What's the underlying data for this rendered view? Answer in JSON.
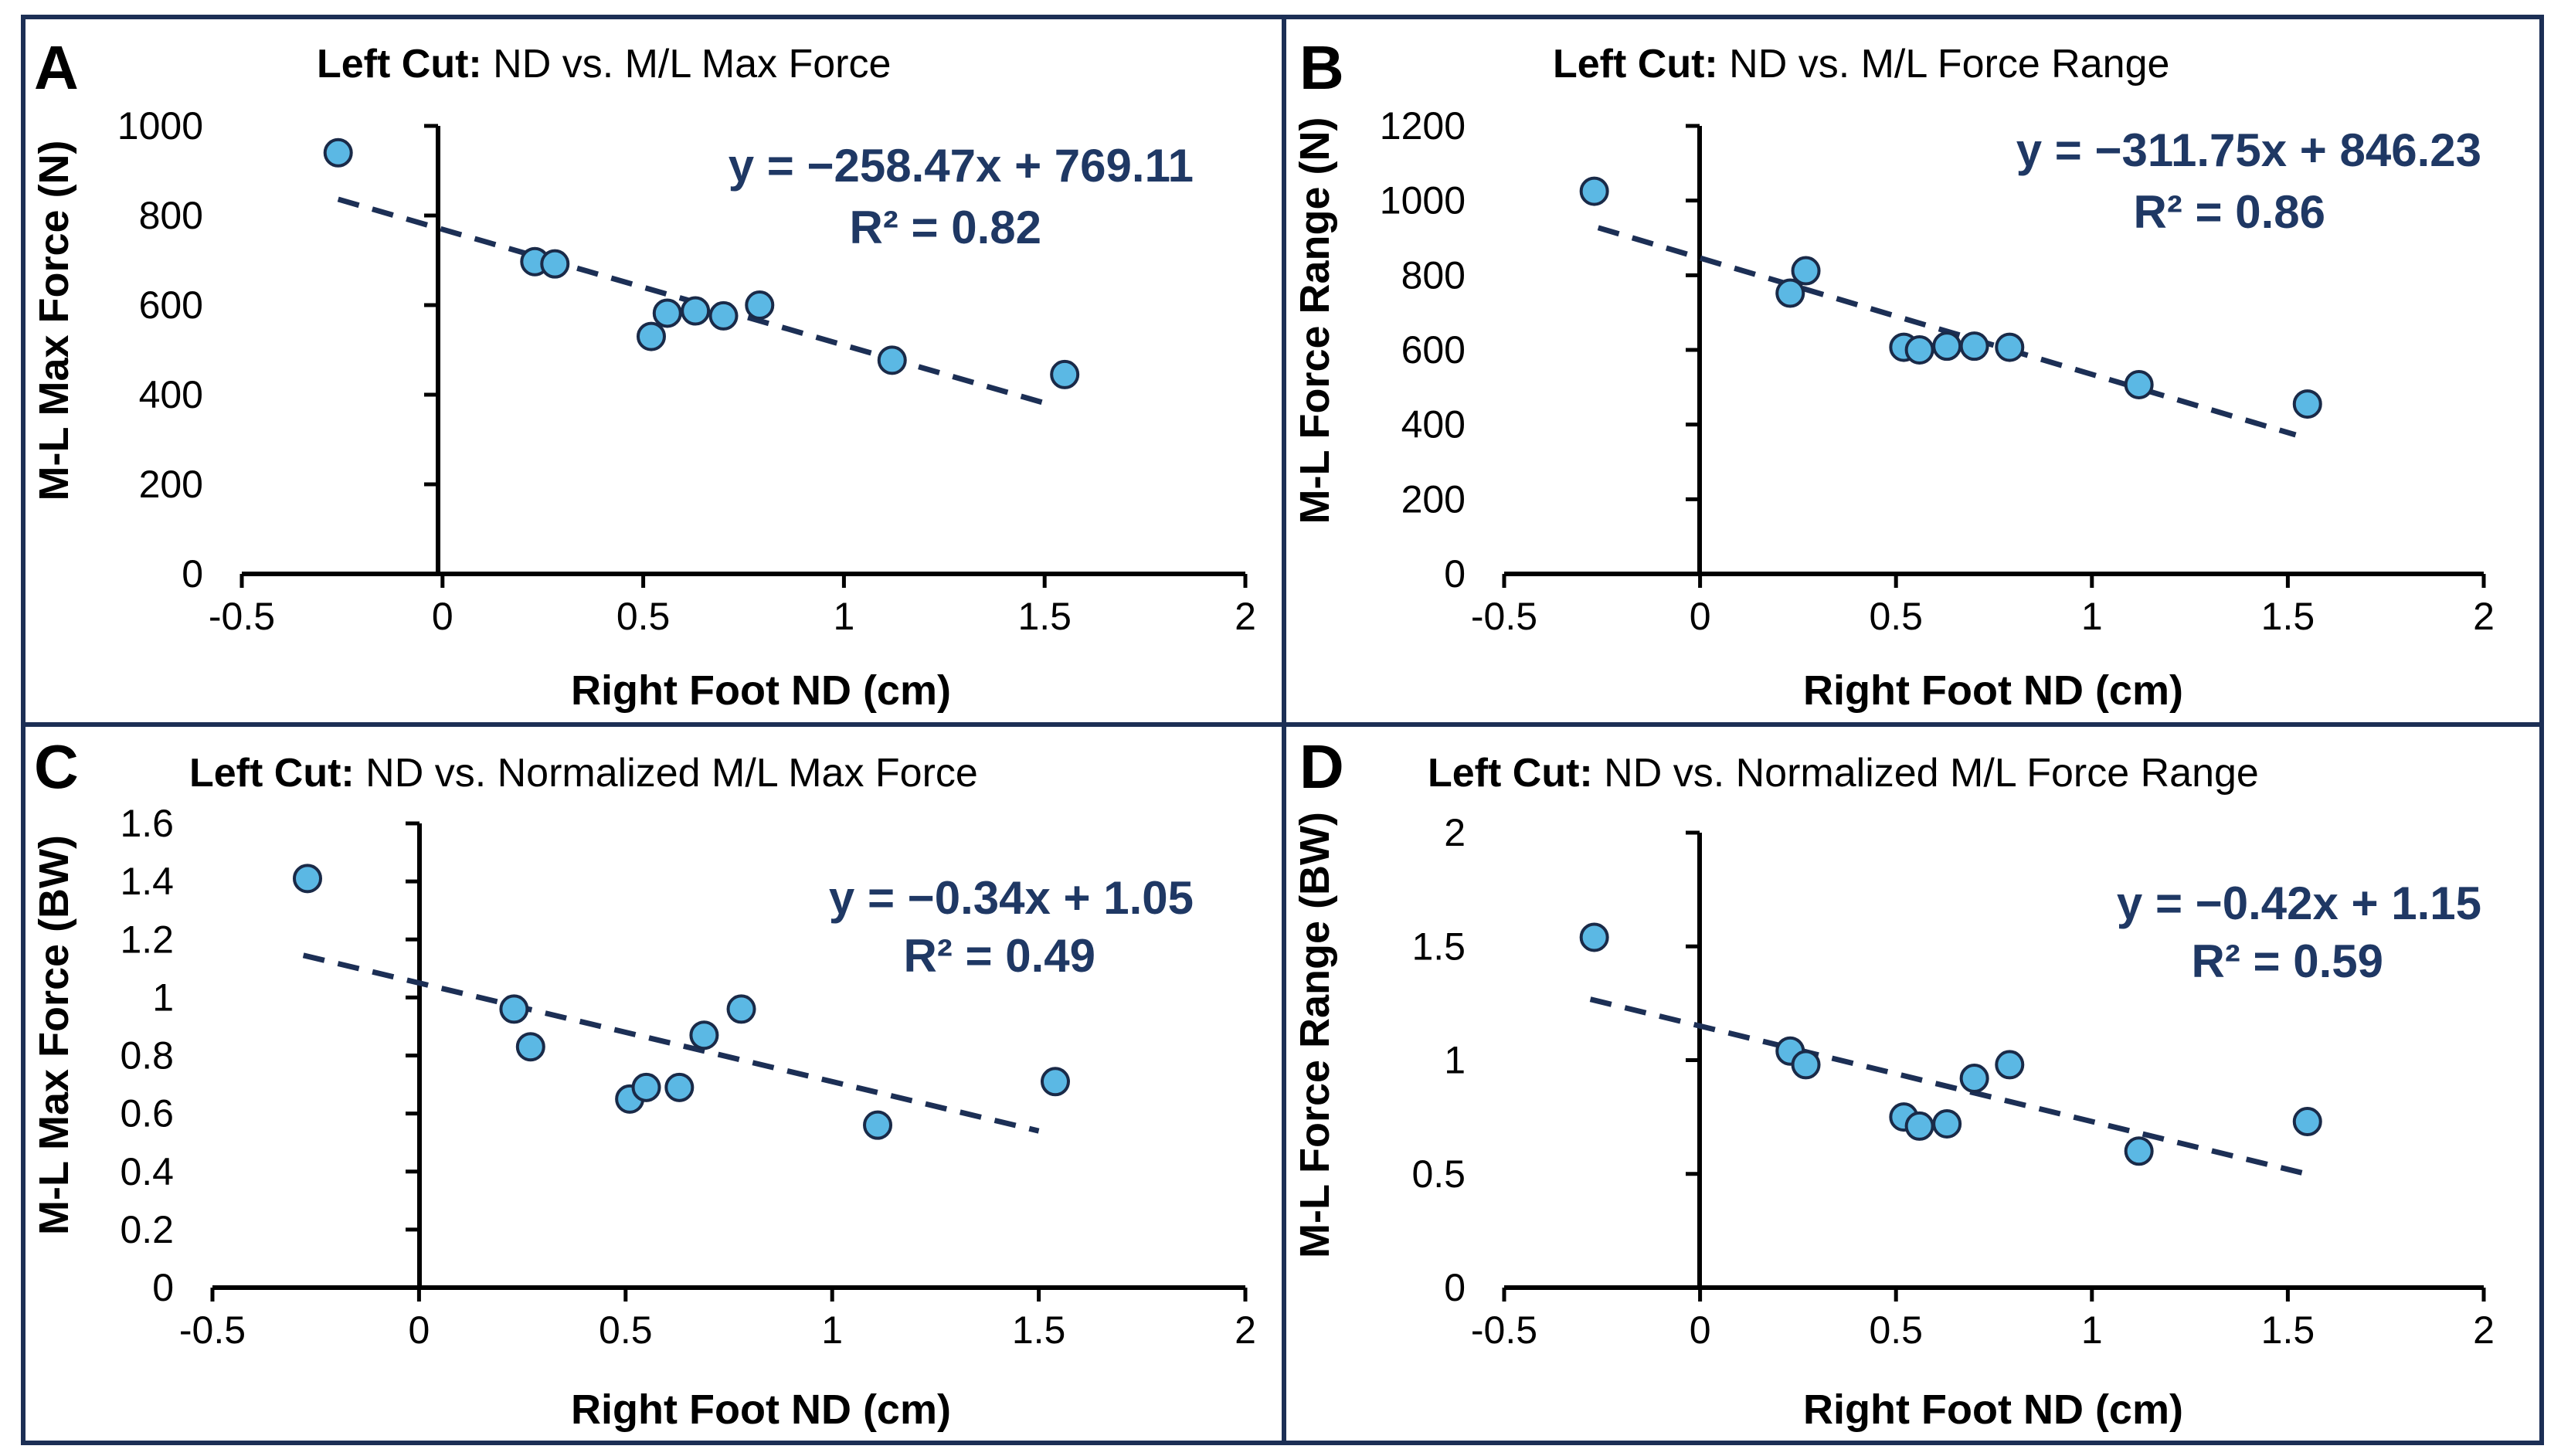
{
  "chart_data": [
    {
      "type": "scatter",
      "panel_letter": "A",
      "title_bold": "Left Cut:",
      "title_rest": " ND vs. M/L Max Force",
      "xlabel": "Right Foot ND (cm)",
      "ylabel": "M-L Max Force (N)",
      "xlim": [
        -0.5,
        2
      ],
      "ylim": [
        0,
        1000
      ],
      "xticks": [
        -0.5,
        0,
        0.5,
        1,
        1.5,
        2
      ],
      "xtick_labels": [
        "-0.5",
        "0",
        "0.5",
        "1",
        "1.5",
        "2"
      ],
      "yticks": [
        0,
        200,
        400,
        600,
        800,
        1000
      ],
      "ytick_labels": [
        "0",
        "200",
        "400",
        "600",
        "800",
        "1000"
      ],
      "x": [
        -0.26,
        0.23,
        0.28,
        0.52,
        0.56,
        0.63,
        0.7,
        0.79,
        1.12,
        1.55
      ],
      "y": [
        940,
        697,
        692,
        530,
        582,
        587,
        576,
        600,
        477,
        445
      ],
      "trendline": {
        "slope": -258.47,
        "intercept": 769.11,
        "x_range": [
          -0.26,
          1.52
        ]
      },
      "equation": "y = −258.47x + 769.11",
      "r2": "R² = 0.82"
    },
    {
      "type": "scatter",
      "panel_letter": "B",
      "title_bold": "Left Cut:",
      "title_rest": " ND vs. M/L Force Range",
      "xlabel": "Right Foot ND (cm)",
      "ylabel": "M-L Force Range (N)",
      "xlim": [
        -0.5,
        2
      ],
      "ylim": [
        0,
        1200
      ],
      "xticks": [
        -0.5,
        0,
        0.5,
        1,
        1.5,
        2
      ],
      "xtick_labels": [
        "-0.5",
        "0",
        "0.5",
        "1",
        "1.5",
        "2"
      ],
      "yticks": [
        0,
        200,
        400,
        600,
        800,
        1000,
        1200
      ],
      "ytick_labels": [
        "0",
        "200",
        "400",
        "600",
        "800",
        "1000",
        "1200"
      ],
      "x": [
        -0.27,
        0.23,
        0.27,
        0.52,
        0.56,
        0.63,
        0.7,
        0.79,
        1.12,
        1.55
      ],
      "y": [
        1025,
        752,
        812,
        607,
        600,
        610,
        610,
        607,
        507,
        455
      ],
      "trendline": {
        "slope": -311.75,
        "intercept": 846.23,
        "x_range": [
          -0.26,
          1.52
        ]
      },
      "equation": "y = −311.75x + 846.23",
      "r2": "R² = 0.86"
    },
    {
      "type": "scatter",
      "panel_letter": "C",
      "title_bold": "Left Cut:",
      "title_rest": " ND vs. Normalized M/L Max Force",
      "xlabel": "Right Foot ND (cm)",
      "ylabel": "M-L Max Force (BW)",
      "xlim": [
        -0.5,
        2
      ],
      "ylim": [
        0,
        1.6
      ],
      "xticks": [
        -0.5,
        0,
        0.5,
        1,
        1.5,
        2
      ],
      "xtick_labels": [
        "-0.5",
        "0",
        "0.5",
        "1",
        "1.5",
        "2"
      ],
      "yticks": [
        0,
        0.2,
        0.4,
        0.6,
        0.8,
        1,
        1.2,
        1.4,
        1.6
      ],
      "ytick_labels": [
        "0",
        "0.2",
        "0.4",
        "0.6",
        "0.8",
        "1",
        "1.2",
        "1.4",
        "1.6"
      ],
      "x": [
        -0.27,
        0.23,
        0.27,
        0.51,
        0.55,
        0.63,
        0.69,
        0.78,
        1.11,
        1.54
      ],
      "y": [
        1.41,
        0.96,
        0.83,
        0.65,
        0.69,
        0.69,
        0.87,
        0.96,
        0.56,
        0.71
      ],
      "trendline": {
        "slope": -0.34,
        "intercept": 1.05,
        "x_range": [
          -0.28,
          1.5
        ]
      },
      "equation": "y = −0.34x + 1.05",
      "r2": "R² = 0.49"
    },
    {
      "type": "scatter",
      "panel_letter": "D",
      "title_bold": "Left Cut:",
      "title_rest": " ND vs. Normalized M/L Force Range",
      "xlabel": "Right Foot ND (cm)",
      "ylabel": "M-L Force Range (BW)",
      "xlim": [
        -0.5,
        2
      ],
      "ylim": [
        0,
        2
      ],
      "xticks": [
        -0.5,
        0,
        0.5,
        1,
        1.5,
        2
      ],
      "xtick_labels": [
        "-0.5",
        "0",
        "0.5",
        "1",
        "1.5",
        "2"
      ],
      "yticks": [
        0,
        0.5,
        1,
        1.5,
        2
      ],
      "ytick_labels": [
        "0",
        "0.5",
        "1",
        "1.5",
        "2"
      ],
      "x": [
        -0.27,
        0.23,
        0.27,
        0.52,
        0.56,
        0.63,
        0.7,
        0.79,
        1.12,
        1.55
      ],
      "y": [
        1.54,
        1.04,
        0.98,
        0.75,
        0.71,
        0.72,
        0.92,
        0.98,
        0.6,
        0.73
      ],
      "trendline": {
        "slope": -0.42,
        "intercept": 1.15,
        "x_range": [
          -0.28,
          1.54
        ]
      },
      "equation": "y = −0.42x + 1.15",
      "r2": "R² = 0.59"
    }
  ],
  "colors": {
    "border": "#1c2f55",
    "marker_fill": "#5bb8e4",
    "marker_edge": "#1a2a48",
    "trendline": "#1c2f55",
    "equation": "#1f3864",
    "axis": "#000000"
  }
}
